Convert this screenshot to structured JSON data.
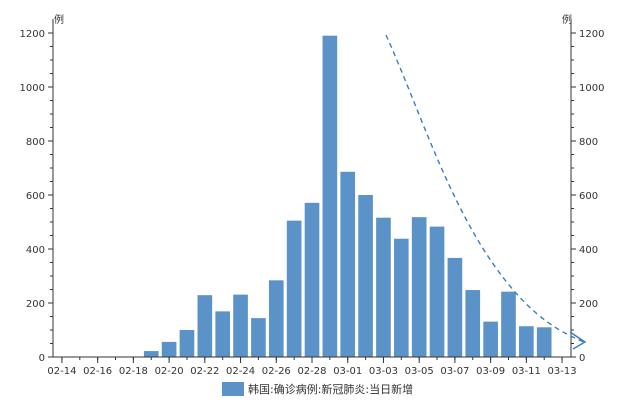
{
  "chart_data": {
    "type": "bar",
    "categories": [
      "02-14",
      "02-15",
      "02-16",
      "02-17",
      "02-18",
      "02-19",
      "02-20",
      "02-21",
      "02-22",
      "02-23",
      "02-24",
      "02-25",
      "02-26",
      "02-27",
      "02-28",
      "02-29",
      "03-01",
      "03-02",
      "03-03",
      "03-04",
      "03-05",
      "03-06",
      "03-07",
      "03-08",
      "03-09",
      "03-10",
      "03-11",
      "03-12",
      "03-13"
    ],
    "x_tick_labels": [
      "02-14",
      "02-16",
      "02-18",
      "02-20",
      "02-22",
      "02-24",
      "02-26",
      "02-28",
      "03-01",
      "03-03",
      "03-05",
      "03-07",
      "03-09",
      "03-11",
      "03-13"
    ],
    "series": [
      {
        "name": "韩国:确诊病例:新冠肺炎:当日新增",
        "values": [
          null,
          0,
          0,
          0,
          0,
          22,
          56,
          100,
          229,
          169,
          231,
          144,
          284,
          505,
          571,
          1190,
          686,
          600,
          516,
          438,
          518,
          483,
          367,
          248,
          131,
          242,
          114,
          110,
          null
        ],
        "color": "#5b93c8"
      }
    ],
    "trend_line": {
      "style": "dashed",
      "color": "#3b7cc0",
      "arrow": "end"
    },
    "ylim": [
      0,
      1200
    ],
    "y_ticks": [
      0,
      200,
      400,
      600,
      800,
      1000,
      1200
    ],
    "y_tick_labels": [
      "0",
      "200",
      "400",
      "600",
      "800",
      "1000",
      "1200"
    ],
    "left_axis_unit": "例",
    "right_axis_unit": "例",
    "grid": false,
    "legend_position": "bottom"
  }
}
